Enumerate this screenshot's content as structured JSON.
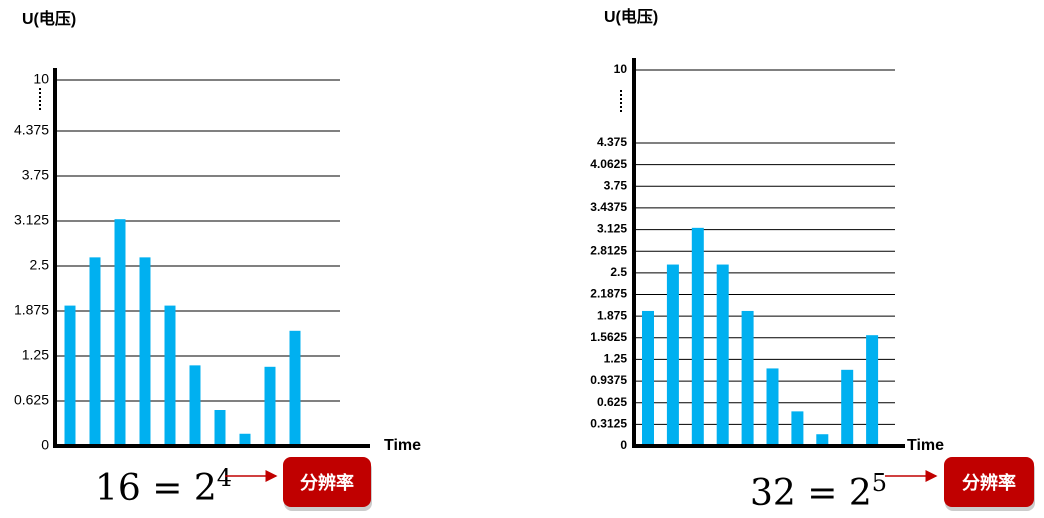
{
  "chart_data": [
    {
      "type": "bar",
      "y_label": "U(电压)",
      "x_label": "Time",
      "color": "#00b0f0",
      "grid": true,
      "values": [
        1.95,
        2.62,
        3.15,
        2.62,
        1.95,
        1.12,
        0.5,
        0.17,
        1.1,
        1.6
      ],
      "yticks": [
        0,
        0.625,
        1.25,
        1.875,
        2.5,
        3.125,
        3.75,
        4.375,
        10
      ],
      "formula": {
        "base": "16 = 2",
        "exponent": "4"
      },
      "button": "分辨率"
    },
    {
      "type": "bar",
      "y_label": "U(电压)",
      "x_label": "Time",
      "color": "#00b0f0",
      "grid": true,
      "values": [
        1.95,
        2.62,
        3.15,
        2.62,
        1.95,
        1.12,
        0.5,
        0.17,
        1.1,
        1.6
      ],
      "yticks": [
        0,
        0.3125,
        0.625,
        0.9375,
        1.25,
        1.5625,
        1.875,
        2.1875,
        2.5,
        2.8125,
        3.125,
        3.4375,
        3.75,
        4.0625,
        4.375,
        10
      ],
      "formula": {
        "base": "32 = 2",
        "exponent": "5"
      },
      "button": "分辨率"
    }
  ]
}
